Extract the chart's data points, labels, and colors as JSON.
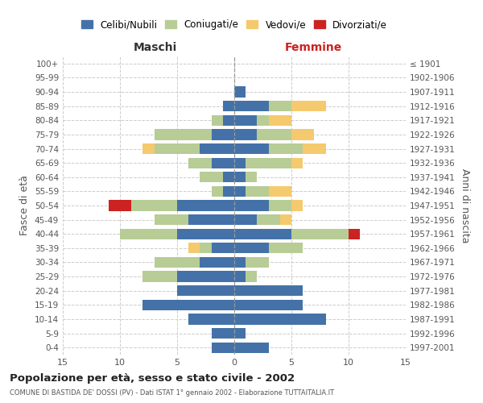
{
  "age_groups": [
    "100+",
    "95-99",
    "90-94",
    "85-89",
    "80-84",
    "75-79",
    "70-74",
    "65-69",
    "60-64",
    "55-59",
    "50-54",
    "45-49",
    "40-44",
    "35-39",
    "30-34",
    "25-29",
    "20-24",
    "15-19",
    "10-14",
    "5-9",
    "0-4"
  ],
  "birth_years": [
    "≤ 1901",
    "1902-1906",
    "1907-1911",
    "1912-1916",
    "1917-1921",
    "1922-1926",
    "1927-1931",
    "1932-1936",
    "1937-1941",
    "1942-1946",
    "1947-1951",
    "1952-1956",
    "1957-1961",
    "1962-1966",
    "1967-1971",
    "1972-1976",
    "1977-1981",
    "1982-1986",
    "1987-1991",
    "1992-1996",
    "1997-2001"
  ],
  "maschi": {
    "celibi": [
      0,
      0,
      0,
      1,
      1,
      2,
      3,
      2,
      1,
      1,
      5,
      4,
      5,
      2,
      3,
      5,
      5,
      8,
      4,
      2,
      2
    ],
    "coniugati": [
      0,
      0,
      0,
      0,
      1,
      5,
      4,
      2,
      2,
      1,
      4,
      3,
      5,
      1,
      4,
      3,
      0,
      0,
      0,
      0,
      0
    ],
    "vedovi": [
      0,
      0,
      0,
      0,
      0,
      0,
      1,
      0,
      0,
      0,
      0,
      0,
      0,
      1,
      0,
      0,
      0,
      0,
      0,
      0,
      0
    ],
    "divorziati": [
      0,
      0,
      0,
      0,
      0,
      0,
      0,
      0,
      0,
      0,
      2,
      0,
      0,
      0,
      0,
      0,
      0,
      0,
      0,
      0,
      0
    ]
  },
  "femmine": {
    "nubili": [
      0,
      0,
      1,
      3,
      2,
      2,
      3,
      1,
      1,
      1,
      3,
      2,
      5,
      3,
      1,
      1,
      6,
      6,
      8,
      1,
      3
    ],
    "coniugate": [
      0,
      0,
      0,
      2,
      1,
      3,
      3,
      4,
      1,
      2,
      2,
      2,
      5,
      3,
      2,
      1,
      0,
      0,
      0,
      0,
      0
    ],
    "vedove": [
      0,
      0,
      0,
      3,
      2,
      2,
      2,
      1,
      0,
      2,
      1,
      1,
      0,
      0,
      0,
      0,
      0,
      0,
      0,
      0,
      0
    ],
    "divorziate": [
      0,
      0,
      0,
      0,
      0,
      0,
      0,
      0,
      0,
      0,
      0,
      0,
      1,
      0,
      0,
      0,
      0,
      0,
      0,
      0,
      0
    ]
  },
  "colors": {
    "celibi": "#4472a8",
    "coniugati": "#b8cc96",
    "vedovi": "#f5c96e",
    "divorziati": "#cc2222"
  },
  "title": "Popolazione per età, sesso e stato civile - 2002",
  "subtitle": "COMUNE DI BASTIDA DE' DOSSI (PV) - Dati ISTAT 1° gennaio 2002 - Elaborazione TUTTAITALIA.IT",
  "ylabel_left": "Fasce di età",
  "ylabel_right": "Anni di nascita",
  "xlabel_left": "Maschi",
  "xlabel_right": "Femmine",
  "xlim": 15,
  "legend_labels": [
    "Celibi/Nubili",
    "Coniugati/e",
    "Vedovi/e",
    "Divorziati/e"
  ]
}
